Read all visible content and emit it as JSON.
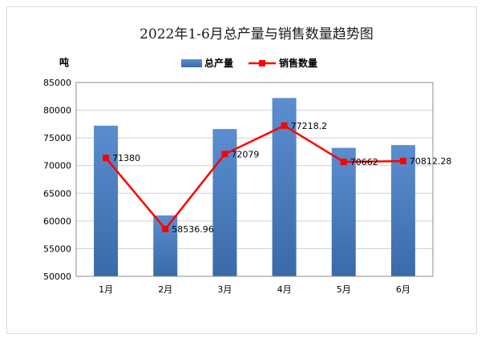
{
  "chart_data": {
    "type": "bar",
    "title": "2022年1-6月总产量与销售数量趋势图",
    "ylabel": "吨",
    "categories": [
      "1月",
      "2月",
      "3月",
      "4月",
      "5月",
      "6月"
    ],
    "ylim": [
      50000,
      85000
    ],
    "yticks": [
      "50000",
      "55000",
      "60000",
      "65000",
      "70000",
      "75000",
      "80000",
      "85000"
    ],
    "series": [
      {
        "name": "总产量",
        "type": "bar",
        "color": "#4a7ebb",
        "values": [
          77200,
          61000,
          76600,
          82200,
          73200,
          73700
        ]
      },
      {
        "name": "销售数量",
        "type": "line",
        "color": "#ff0000",
        "values": [
          71380,
          58536.96,
          72079,
          77218.2,
          70662,
          70812.28
        ],
        "labels": [
          "71380",
          "58536.96",
          "72079",
          "77218.2",
          "70662",
          "70812.28"
        ]
      }
    ],
    "legend_position": "top",
    "grid": true
  }
}
